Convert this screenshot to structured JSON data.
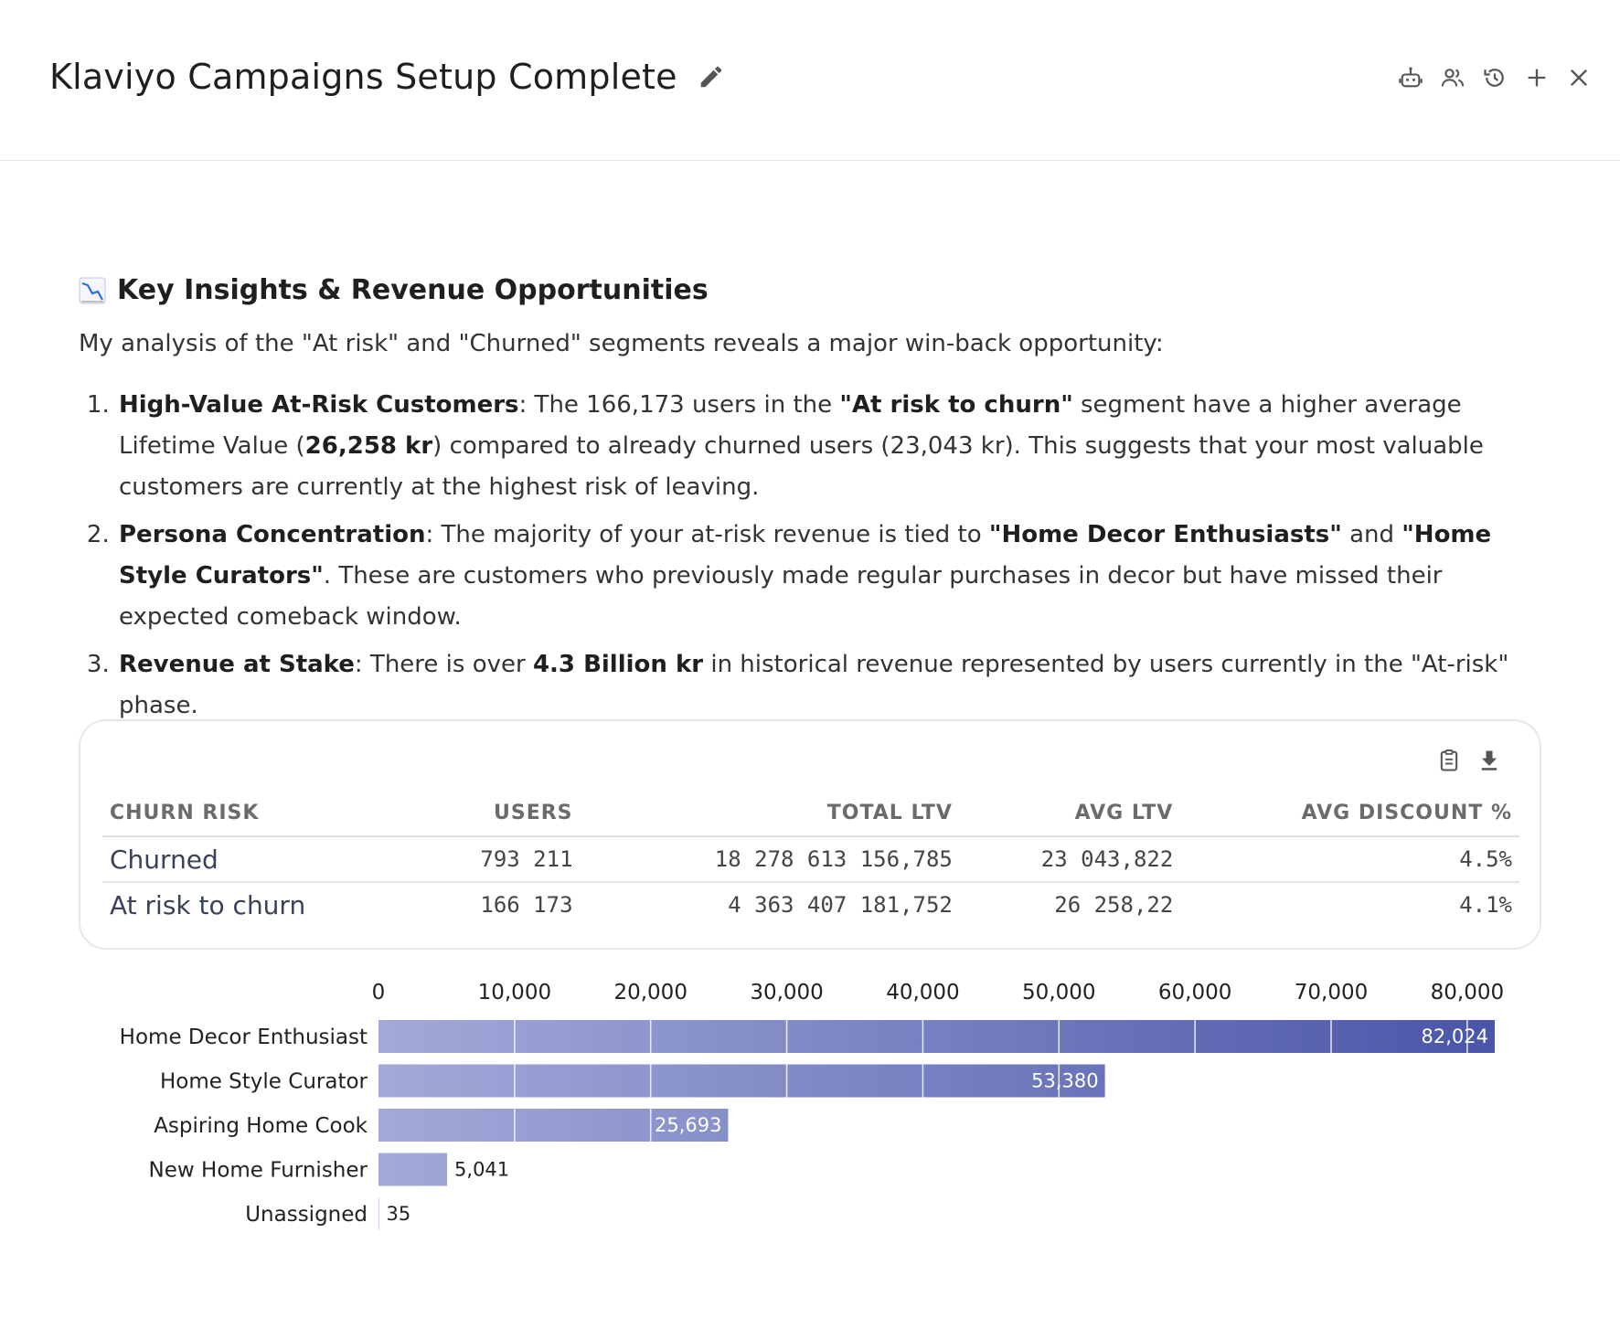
{
  "header": {
    "title": "Klaviyo Campaigns Setup Complete",
    "icons": [
      "edit-icon",
      "robot-icon",
      "users-icon",
      "history-icon",
      "add-icon",
      "close-icon"
    ]
  },
  "section": {
    "title": "Key Insights & Revenue Opportunities",
    "intro": "My analysis of the \"At risk\" and \"Churned\" segments reveals a major win-back opportunity:",
    "insights": [
      {
        "lead": "High-Value At-Risk Customers",
        "t1": ": The 166,173 users in the ",
        "b1": "\"At risk to churn\"",
        "t2": " segment have a higher average Lifetime Value (",
        "b2": "26,258 kr",
        "t3": ") compared to already churned users (23,043 kr). This suggests that your most valuable customers are currently at the highest risk of leaving."
      },
      {
        "lead": "Persona Concentration",
        "t1": ": The majority of your at-risk revenue is tied to ",
        "b1": "\"Home Decor Enthusiasts\"",
        "t2": " and ",
        "b2": "\"Home Style Curators\"",
        "t3": ". These are customers who previously made regular purchases in decor but have missed their expected comeback window."
      },
      {
        "lead": "Revenue at Stake",
        "t1": ": There is over ",
        "b1": "4.3 Billion kr",
        "t2": " in historical revenue represented by users currently in the \"At-risk\" phase."
      }
    ]
  },
  "table": {
    "headers": [
      "CHURN RISK",
      "USERS",
      "TOTAL LTV",
      "AVG LTV",
      "AVG DISCOUNT %"
    ],
    "rows": [
      [
        "Churned",
        "793 211",
        "18 278 613 156,785",
        "23 043,822",
        "4.5%"
      ],
      [
        "At risk to churn",
        "166 173",
        "4 363 407 181,752",
        "26 258,22",
        "4.1%"
      ]
    ]
  },
  "chart_data": {
    "type": "bar",
    "orientation": "horizontal",
    "title": "",
    "xlabel": "",
    "ylabel": "",
    "xlim": [
      0,
      82024
    ],
    "ticks": [
      0,
      10000,
      20000,
      30000,
      40000,
      50000,
      60000,
      70000,
      80000
    ],
    "tick_labels": [
      "0",
      "10,000",
      "20,000",
      "30,000",
      "40,000",
      "50,000",
      "60,000",
      "70,000",
      "80,000"
    ],
    "categories": [
      "Home Decor Enthusiast",
      "Home Style Curator",
      "Aspiring Home Cook",
      "New Home Furnisher",
      "Unassigned"
    ],
    "values": [
      82024,
      53380,
      25693,
      5041,
      35
    ],
    "value_labels": [
      "82,024",
      "53,380",
      "25,693",
      "5,041",
      "35"
    ],
    "color_light": "#a3aad9",
    "color_dark": "#4a55a8"
  }
}
